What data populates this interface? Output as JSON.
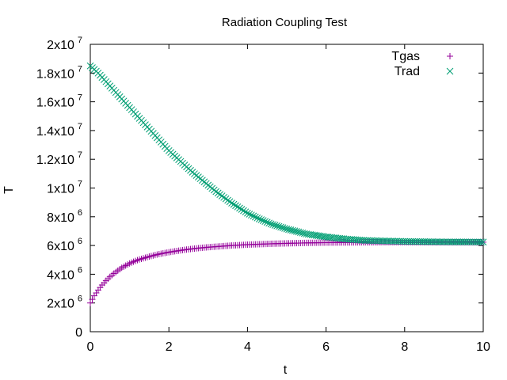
{
  "chart_data": {
    "type": "scatter",
    "title": "Radiation Coupling Test",
    "xlabel": "t",
    "ylabel": "T",
    "xlim": [
      0,
      10
    ],
    "ylim": [
      0,
      20000000
    ],
    "grid": false,
    "legend_position": "top-right",
    "x_ticks": [
      {
        "value": 0,
        "label": "0"
      },
      {
        "value": 2,
        "label": "2"
      },
      {
        "value": 4,
        "label": "4"
      },
      {
        "value": 6,
        "label": "6"
      },
      {
        "value": 8,
        "label": "8"
      },
      {
        "value": 10,
        "label": "10"
      }
    ],
    "y_ticks": [
      {
        "value": 0,
        "mantissa": "0",
        "exp": ""
      },
      {
        "value": 2000000,
        "mantissa": "2x10",
        "exp": "6"
      },
      {
        "value": 4000000,
        "mantissa": "4x10",
        "exp": "6"
      },
      {
        "value": 6000000,
        "mantissa": "6x10",
        "exp": "6"
      },
      {
        "value": 8000000,
        "mantissa": "8x10",
        "exp": "6"
      },
      {
        "value": 10000000,
        "mantissa": "1x10",
        "exp": "7"
      },
      {
        "value": 12000000,
        "mantissa": "1.2x10",
        "exp": "7"
      },
      {
        "value": 14000000,
        "mantissa": "1.4x10",
        "exp": "7"
      },
      {
        "value": 16000000,
        "mantissa": "1.6x10",
        "exp": "7"
      },
      {
        "value": 18000000,
        "mantissa": "1.8x10",
        "exp": "7"
      },
      {
        "value": 20000000,
        "mantissa": "2x10",
        "exp": "7"
      }
    ],
    "series": [
      {
        "name": "Tgas",
        "marker": "plus",
        "color": "#94009a",
        "points": [
          [
            0.0,
            2000000
          ],
          [
            0.1,
            2500000
          ],
          [
            0.2,
            2900000
          ],
          [
            0.3,
            3250000
          ],
          [
            0.4,
            3550000
          ],
          [
            0.5,
            3820000
          ],
          [
            0.6,
            4050000
          ],
          [
            0.7,
            4250000
          ],
          [
            0.8,
            4450000
          ],
          [
            0.9,
            4600000
          ],
          [
            1.0,
            4750000
          ],
          [
            1.1,
            4870000
          ],
          [
            1.2,
            4980000
          ],
          [
            1.3,
            5070000
          ],
          [
            1.4,
            5150000
          ],
          [
            1.5,
            5230000
          ],
          [
            1.6,
            5300000
          ],
          [
            1.7,
            5370000
          ],
          [
            1.8,
            5430000
          ],
          [
            1.9,
            5480000
          ],
          [
            2.0,
            5530000
          ],
          [
            2.2,
            5620000
          ],
          [
            2.4,
            5700000
          ],
          [
            2.6,
            5770000
          ],
          [
            2.8,
            5830000
          ],
          [
            3.0,
            5880000
          ],
          [
            3.2,
            5920000
          ],
          [
            3.4,
            5960000
          ],
          [
            3.6,
            6000000
          ],
          [
            3.8,
            6030000
          ],
          [
            4.0,
            6060000
          ],
          [
            4.3,
            6090000
          ],
          [
            4.6,
            6120000
          ],
          [
            5.0,
            6150000
          ],
          [
            5.5,
            6180000
          ],
          [
            6.0,
            6200000
          ],
          [
            6.5,
            6210000
          ],
          [
            7.0,
            6220000
          ],
          [
            8.0,
            6230000
          ],
          [
            9.0,
            6230000
          ],
          [
            10.0,
            6230000
          ]
        ]
      },
      {
        "name": "Trad",
        "marker": "cross",
        "color": "#009e73",
        "points": [
          [
            0.0,
            18500000
          ],
          [
            0.2,
            18000000
          ],
          [
            0.4,
            17400000
          ],
          [
            0.6,
            16800000
          ],
          [
            0.8,
            16200000
          ],
          [
            1.0,
            15600000
          ],
          [
            1.2,
            15000000
          ],
          [
            1.4,
            14400000
          ],
          [
            1.6,
            13800000
          ],
          [
            1.8,
            13200000
          ],
          [
            2.0,
            12600000
          ],
          [
            2.2,
            12100000
          ],
          [
            2.4,
            11600000
          ],
          [
            2.6,
            11100000
          ],
          [
            2.8,
            10650000
          ],
          [
            3.0,
            10200000
          ],
          [
            3.2,
            9750000
          ],
          [
            3.4,
            9350000
          ],
          [
            3.6,
            8950000
          ],
          [
            3.8,
            8600000
          ],
          [
            4.0,
            8250000
          ],
          [
            4.3,
            7850000
          ],
          [
            4.6,
            7500000
          ],
          [
            5.0,
            7150000
          ],
          [
            5.5,
            6800000
          ],
          [
            6.0,
            6600000
          ],
          [
            6.5,
            6450000
          ],
          [
            7.0,
            6350000
          ],
          [
            8.0,
            6280000
          ],
          [
            9.0,
            6250000
          ],
          [
            10.0,
            6240000
          ]
        ]
      }
    ]
  }
}
